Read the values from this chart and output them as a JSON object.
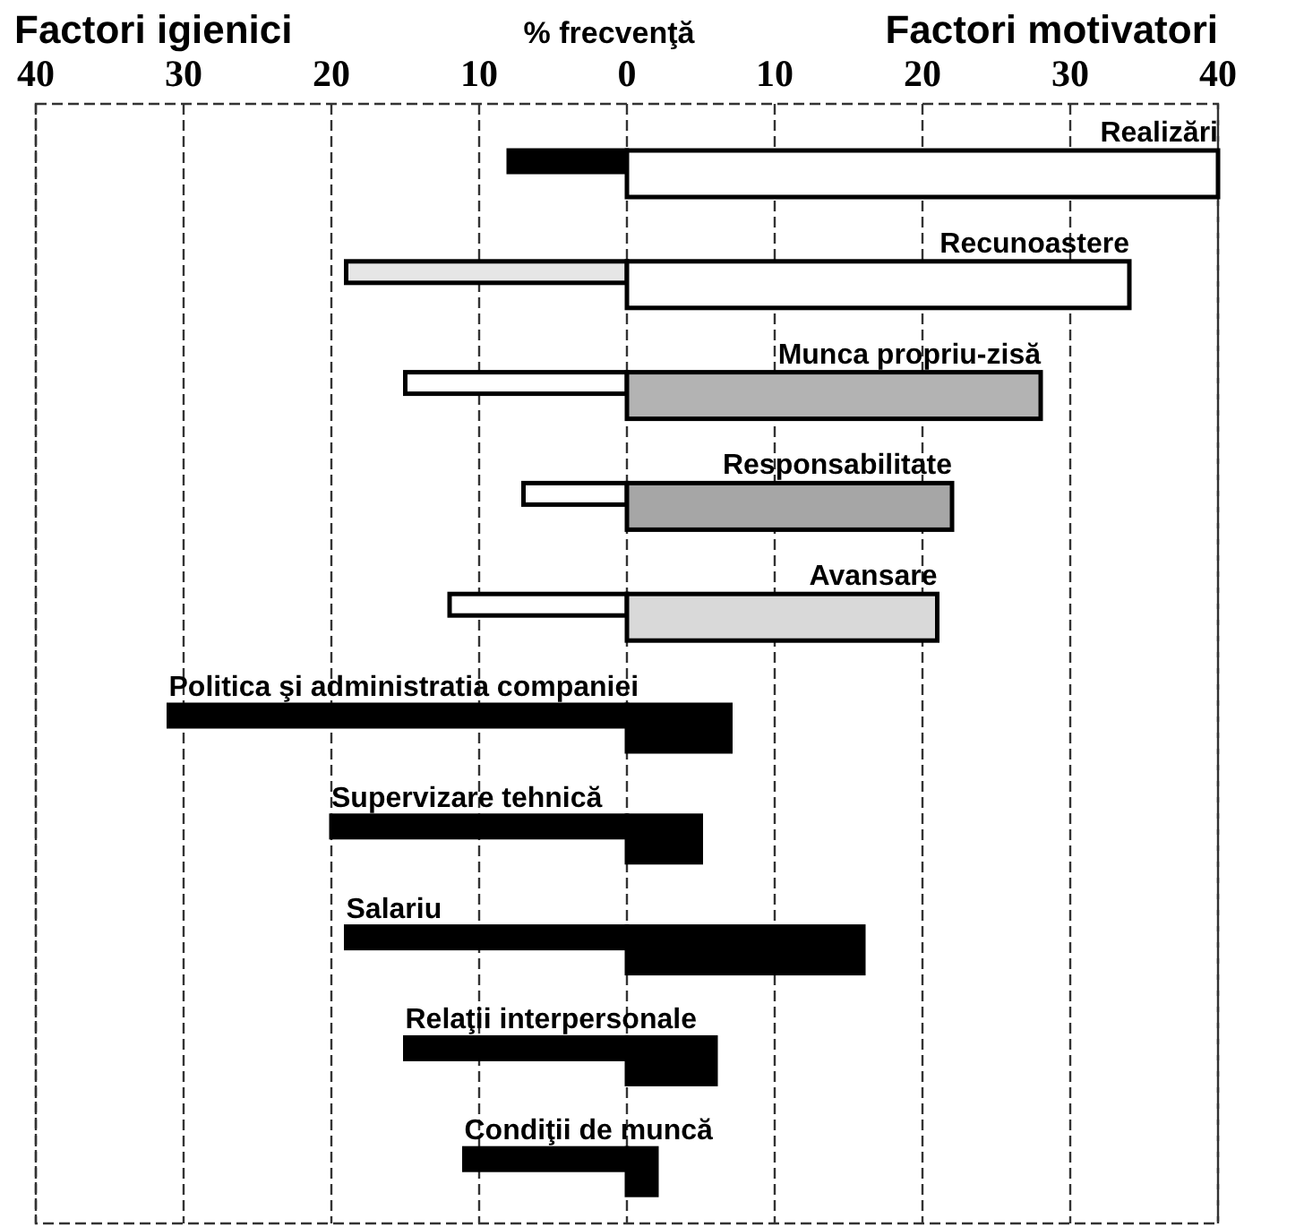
{
  "chart_data": {
    "type": "bar",
    "orientation": "horizontal",
    "stacked": true,
    "xlabel": "% frecvenţă",
    "annotations": [
      "Factori igienici",
      "Factori motivatori"
    ],
    "categories": [
      "Realizări",
      "Recunoastere",
      "Munca propriu-zisă",
      "Responsabilitate",
      "Avansare",
      "Politica şi administratia companiei",
      "Supervizare tehnică",
      "Salariu",
      "Relaţii interpersonale",
      "Condiţii de muncă"
    ],
    "series": [
      {
        "colors": [
          "#000000",
          "#e6e6e6",
          "#ffffff",
          "#ffffff",
          "#ffffff",
          "#000000",
          "#000000",
          "#000000",
          "#000000",
          "#000000"
        ],
        "values": [
          -8,
          -19,
          -15,
          -7,
          -12,
          -31,
          -20,
          -19,
          -15,
          -11
        ]
      },
      {
        "colors": [
          "#ffffff",
          "#ffffff",
          "#b3b3b3",
          "#a6a6a6",
          "#d9d9d9",
          "#000000",
          "#000000",
          "#000000",
          "#000000",
          "#000000"
        ],
        "values": [
          40,
          34,
          28,
          22,
          21,
          7,
          5,
          16,
          6,
          2
        ]
      }
    ],
    "xlim": [
      -40,
      40
    ],
    "xticks": [
      {
        "value": -40,
        "label": "40"
      },
      {
        "value": -30,
        "label": "30"
      },
      {
        "value": -20,
        "label": "20"
      },
      {
        "value": -10,
        "label": "10"
      },
      0,
      10,
      20,
      30,
      40
    ],
    "grid": "x"
  }
}
